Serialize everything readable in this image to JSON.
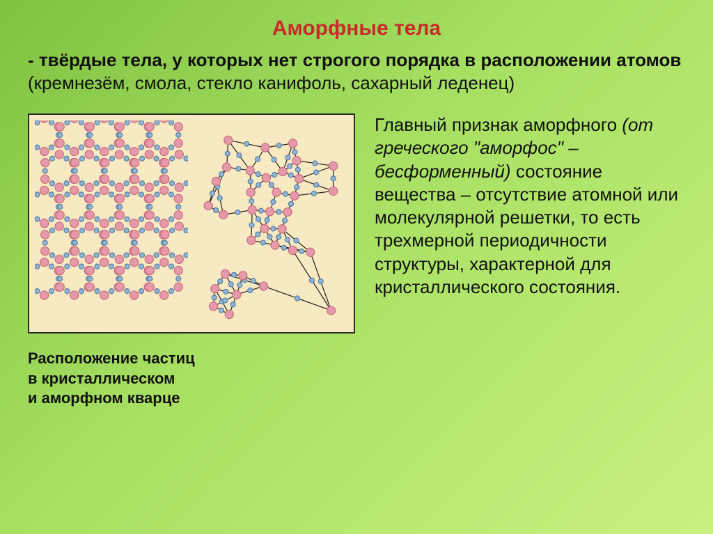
{
  "title": {
    "text": "Аморфные тела",
    "color": "#c92a2a",
    "fontsize": 30
  },
  "definition": {
    "bold": "- твёрдые тела, у которых нет строгого порядка в расположении атомов ",
    "rest": "(кремнезём, смола, стекло канифоль, сахарный леденец)",
    "fontsize": 26,
    "color": "#111111"
  },
  "paragraph": {
    "lead": "Главный признак аморфного ",
    "italic": "(от греческого \"аморфос\" – бесформенный)",
    "tail": " состояние вещества – отсутствие атомной или молекулярной решетки, то есть трехмерной периодичности структуры, характерной для кристаллического состояния.",
    "fontsize": 26,
    "color": "#111111"
  },
  "caption": {
    "l1": "Расположение частиц",
    "l2": "в кристаллическом",
    "l3": "и аморфном кварце",
    "fontsize": 22,
    "color": "#111111"
  },
  "diagram": {
    "background": "#f7eac2",
    "border": "#2a2a2a",
    "atom_pink": "#e59aaa",
    "atom_pink_stroke": "#c96a80",
    "atom_blue": "#8fb4d6",
    "atom_blue_stroke": "#5a7ea3",
    "bond": "#f5d488",
    "bond_dark": "#1a1a1a",
    "r_pink": 6.2,
    "r_blue": 3.6,
    "crystal": {
      "cols": 5,
      "rows": 5,
      "cell": 44,
      "ox": 14,
      "oy": 20
    },
    "amorph_seed": 7
  }
}
